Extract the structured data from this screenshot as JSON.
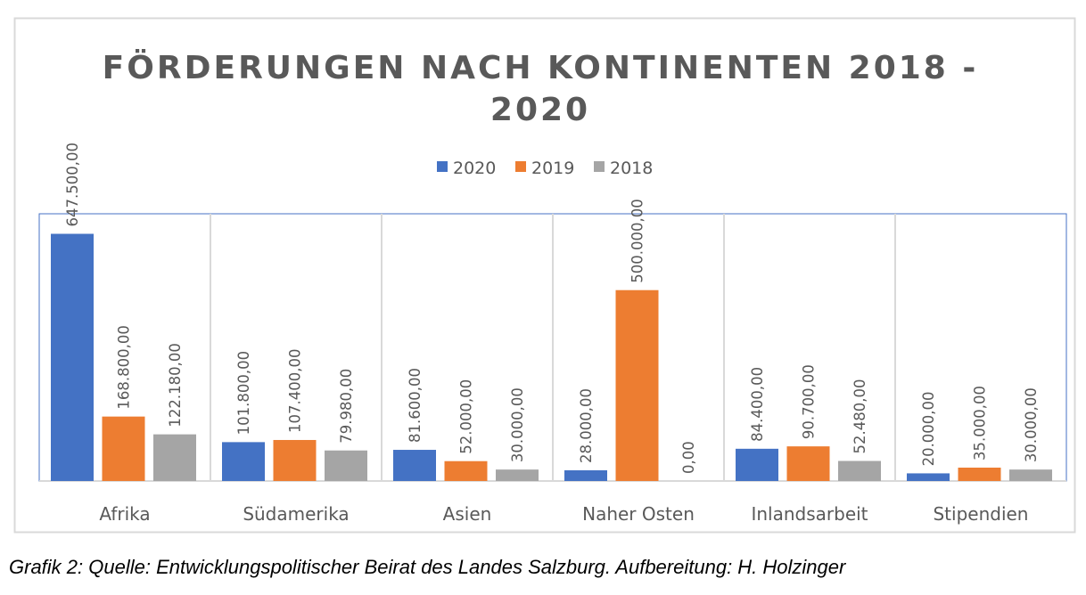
{
  "chart_data": {
    "type": "bar",
    "title_lines": [
      "FÖRDERUNGEN NACH KONTINENTEN 2018 -",
      "2020"
    ],
    "categories": [
      "Afrika",
      "Südamerika",
      "Asien",
      "Naher Osten",
      "Inlandsarbeit",
      "Stipendien"
    ],
    "series": [
      {
        "name": "2020",
        "color": "#4472C4",
        "values": [
          647500,
          101800,
          81600,
          28000,
          84400,
          20000
        ],
        "labels": [
          "647.500,00",
          "101.800,00",
          "81.600,00",
          "28.000,00",
          "84.400,00",
          "20.000,00"
        ]
      },
      {
        "name": "2019",
        "color": "#ED7D31",
        "values": [
          168800,
          107400,
          52000,
          500000,
          90700,
          35000
        ],
        "labels": [
          "168.800,00",
          "107.400,00",
          "52.000,00",
          "500.000,00",
          "90.700,00",
          "35.000,00"
        ]
      },
      {
        "name": "2018",
        "color": "#A5A5A5",
        "values": [
          122180,
          79980,
          30000,
          0,
          52480,
          30000
        ],
        "labels": [
          "122.180,00",
          "79.980,00",
          "30.000,00",
          "0,00",
          "52.480,00",
          "30.000,00"
        ]
      }
    ],
    "ylim": [
      0,
      700000
    ],
    "grid": false,
    "legend": "top"
  },
  "caption": "Grafik 2: Quelle: Entwicklungspolitischer Beirat des Landes Salzburg. Aufbereitung: H. Holzinger"
}
